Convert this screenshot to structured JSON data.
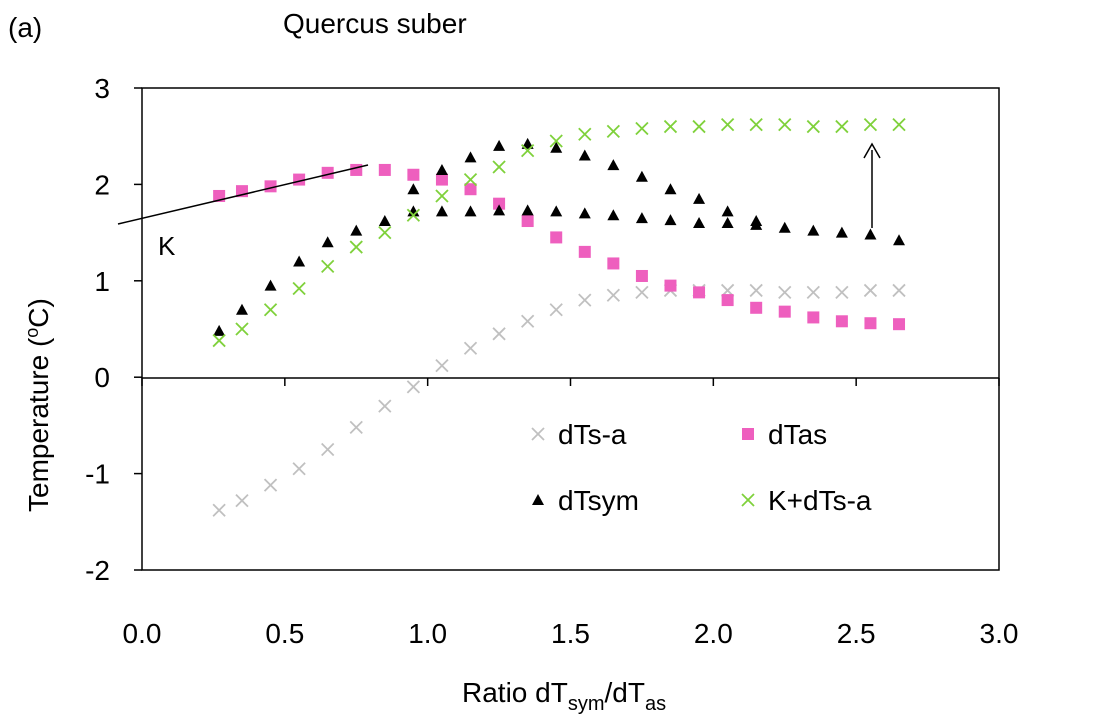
{
  "chart_data": {
    "type": "scatter",
    "panel_label": "(a)",
    "title": "Quercus suber",
    "xlabel": {
      "base": "Ratio dT",
      "sub1": "sym",
      "mid": "/dT",
      "sub2": "as"
    },
    "ylabel": "Temperature (",
    "ylabel_sup": "o",
    "ylabel_unit": "C)",
    "xlim": [
      0,
      3
    ],
    "ylim": [
      -2,
      3
    ],
    "xticks": [
      "0.0",
      "0.5",
      "1.0",
      "1.5",
      "2.0",
      "2.5",
      "3.0"
    ],
    "yticks": [
      "3",
      "2",
      "1",
      "0",
      "-1",
      "-2"
    ],
    "grid": false,
    "legend_position": "lower-right",
    "annotation": "K",
    "colors": {
      "dTs-a": "#c0c0c0",
      "dTas": "#ee5fbe",
      "dTsym": "#000000",
      "K+dTs-a": "#7fd13b",
      "axis": "#000000"
    },
    "series": [
      {
        "name": "dTs-a",
        "marker": "x",
        "x": [
          0.27,
          0.35,
          0.45,
          0.55,
          0.65,
          0.75,
          0.85,
          0.95,
          1.05,
          1.15,
          1.25,
          1.35,
          1.45,
          1.55,
          1.65,
          1.75,
          1.85,
          1.95,
          2.05,
          2.15,
          2.25,
          2.35,
          2.45,
          2.55,
          2.65
        ],
        "y": [
          -1.38,
          -1.28,
          -1.12,
          -0.95,
          -0.75,
          -0.52,
          -0.3,
          -0.1,
          0.12,
          0.3,
          0.45,
          0.58,
          0.7,
          0.8,
          0.85,
          0.88,
          0.9,
          0.9,
          0.9,
          0.9,
          0.88,
          0.88,
          0.88,
          0.9,
          0.9
        ]
      },
      {
        "name": "dTas",
        "marker": "square",
        "x": [
          0.27,
          0.35,
          0.45,
          0.55,
          0.65,
          0.75,
          0.85,
          0.95,
          1.05,
          1.15,
          1.25,
          1.35,
          1.45,
          1.55,
          1.65,
          1.75,
          1.85,
          1.95,
          2.05,
          2.15,
          2.25,
          2.35,
          2.45,
          2.55,
          2.65
        ],
        "y": [
          1.88,
          1.93,
          1.98,
          2.05,
          2.12,
          2.15,
          2.15,
          2.1,
          2.05,
          1.95,
          1.8,
          1.62,
          1.45,
          1.3,
          1.18,
          1.05,
          0.95,
          0.88,
          0.8,
          0.72,
          0.68,
          0.62,
          0.58,
          0.56,
          0.55
        ]
      },
      {
        "name": "dTsym",
        "marker": "triangle",
        "x": [
          0.27,
          0.35,
          0.45,
          0.55,
          0.65,
          0.75,
          0.85,
          0.95,
          1.05,
          1.15,
          1.25,
          1.35,
          1.45,
          1.55,
          1.65,
          1.75,
          1.85,
          1.95,
          2.05,
          2.15,
          2.25,
          2.35,
          2.45,
          2.55,
          2.65
        ],
        "y": [
          0.48,
          0.7,
          0.95,
          1.2,
          1.4,
          1.52,
          1.62,
          1.72,
          1.72,
          1.72,
          1.73,
          1.73,
          1.72,
          1.7,
          1.68,
          1.65,
          1.63,
          1.6,
          1.6,
          1.58,
          1.55,
          1.52,
          1.5,
          1.48,
          1.42
        ]
      },
      {
        "name": "dTsym",
        "marker": "triangle",
        "x": [
          0.95,
          1.05,
          1.15,
          1.25,
          1.35,
          1.45,
          1.55,
          1.65,
          1.75,
          1.85,
          1.95,
          2.05,
          2.15
        ],
        "y": [
          1.95,
          2.15,
          2.28,
          2.4,
          2.42,
          2.38,
          2.3,
          2.2,
          2.08,
          1.95,
          1.85,
          1.72,
          1.62
        ]
      },
      {
        "name": "K+dTs-a",
        "marker": "x",
        "x": [
          0.27,
          0.35,
          0.45,
          0.55,
          0.65,
          0.75,
          0.85,
          0.95,
          1.05,
          1.15,
          1.25,
          1.35,
          1.45,
          1.55,
          1.65,
          1.75,
          1.85,
          1.95,
          2.05,
          2.15,
          2.25,
          2.35,
          2.45,
          2.55,
          2.65
        ],
        "y": [
          0.38,
          0.5,
          0.7,
          0.92,
          1.15,
          1.35,
          1.5,
          1.68,
          1.88,
          2.05,
          2.18,
          2.35,
          2.45,
          2.52,
          2.55,
          2.58,
          2.6,
          2.6,
          2.62,
          2.62,
          2.62,
          2.6,
          2.6,
          2.62,
          2.62
        ]
      }
    ],
    "legend": [
      {
        "label": "dTs-a",
        "series": "dTs-a"
      },
      {
        "label": "dTas",
        "series": "dTas"
      },
      {
        "label": "dTsym",
        "series": "dTsym"
      },
      {
        "label": "K+dTs-a",
        "series": "K+dTs-a"
      }
    ]
  }
}
